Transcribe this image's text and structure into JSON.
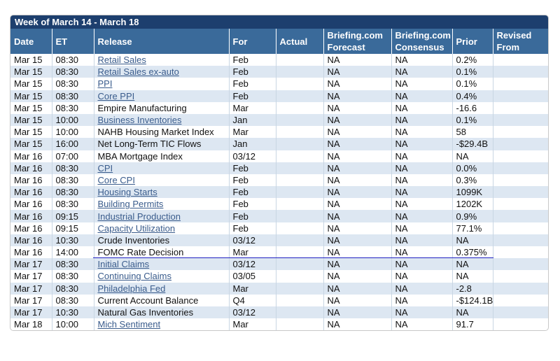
{
  "title": "Week of March 14 - March 18",
  "headers": [
    "Date",
    "ET",
    "Release",
    "For",
    "Actual",
    "Briefing.com Forecast",
    "Briefing.com Consensus",
    "Prior",
    "Revised From"
  ],
  "rows": [
    {
      "date": "Mar 15",
      "et": "08:30",
      "release": "Retail Sales",
      "link": true,
      "for": "Feb",
      "forecast": "NA",
      "consensus": "NA",
      "prior": "0.2%"
    },
    {
      "date": "Mar 15",
      "et": "08:30",
      "release": "Retail Sales ex-auto",
      "link": true,
      "for": "Feb",
      "forecast": "NA",
      "consensus": "NA",
      "prior": "0.1%"
    },
    {
      "date": "Mar 15",
      "et": "08:30",
      "release": "PPI",
      "link": true,
      "for": "Feb",
      "forecast": "NA",
      "consensus": "NA",
      "prior": "0.1%"
    },
    {
      "date": "Mar 15",
      "et": "08:30",
      "release": "Core PPI",
      "link": true,
      "for": "Feb",
      "forecast": "NA",
      "consensus": "NA",
      "prior": "0.4%"
    },
    {
      "date": "Mar 15",
      "et": "08:30",
      "release": "Empire Manufacturing",
      "link": false,
      "for": "Mar",
      "forecast": "NA",
      "consensus": "NA",
      "prior": "-16.6"
    },
    {
      "date": "Mar 15",
      "et": "10:00",
      "release": "Business Inventories",
      "link": true,
      "for": "Jan",
      "forecast": "NA",
      "consensus": "NA",
      "prior": "0.1%"
    },
    {
      "date": "Mar 15",
      "et": "10:00",
      "release": "NAHB Housing Market Index",
      "link": false,
      "for": "Mar",
      "forecast": "NA",
      "consensus": "NA",
      "prior": "58"
    },
    {
      "date": "Mar 15",
      "et": "16:00",
      "release": "Net Long-Term TIC Flows",
      "link": false,
      "for": "Jan",
      "forecast": "NA",
      "consensus": "NA",
      "prior": "-$29.4B"
    },
    {
      "date": "Mar 16",
      "et": "07:00",
      "release": "MBA Mortgage Index",
      "link": false,
      "for": "03/12",
      "forecast": "NA",
      "consensus": "NA",
      "prior": "NA"
    },
    {
      "date": "Mar 16",
      "et": "08:30",
      "release": "CPI",
      "link": true,
      "for": "Feb",
      "forecast": "NA",
      "consensus": "NA",
      "prior": "0.0%"
    },
    {
      "date": "Mar 16",
      "et": "08:30",
      "release": "Core CPI",
      "link": true,
      "for": "Feb",
      "forecast": "NA",
      "consensus": "NA",
      "prior": "0.3%"
    },
    {
      "date": "Mar 16",
      "et": "08:30",
      "release": "Housing Starts",
      "link": true,
      "for": "Feb",
      "forecast": "NA",
      "consensus": "NA",
      "prior": "1099K"
    },
    {
      "date": "Mar 16",
      "et": "08:30",
      "release": "Building Permits",
      "link": true,
      "for": "Feb",
      "forecast": "NA",
      "consensus": "NA",
      "prior": "1202K"
    },
    {
      "date": "Mar 16",
      "et": "09:15",
      "release": "Industrial Production",
      "link": true,
      "for": "Feb",
      "forecast": "NA",
      "consensus": "NA",
      "prior": "0.9%"
    },
    {
      "date": "Mar 16",
      "et": "09:15",
      "release": "Capacity Utilization",
      "link": true,
      "for": "Feb",
      "forecast": "NA",
      "consensus": "NA",
      "prior": "77.1%"
    },
    {
      "date": "Mar 16",
      "et": "10:30",
      "release": "Crude Inventories",
      "link": false,
      "for": "03/12",
      "forecast": "NA",
      "consensus": "NA",
      "prior": "NA"
    },
    {
      "date": "Mar 16",
      "et": "14:00",
      "release": "FOMC Rate Decision",
      "link": false,
      "for": "Mar",
      "forecast": "NA",
      "consensus": "NA",
      "prior": "0.375%"
    },
    {
      "date": "Mar 17",
      "et": "08:30",
      "release": "Initial Claims",
      "link": true,
      "for": "03/12",
      "forecast": "NA",
      "consensus": "NA",
      "prior": "NA"
    },
    {
      "date": "Mar 17",
      "et": "08:30",
      "release": "Continuing Claims",
      "link": true,
      "for": "03/05",
      "forecast": "NA",
      "consensus": "NA",
      "prior": "NA"
    },
    {
      "date": "Mar 17",
      "et": "08:30",
      "release": "Philadelphia Fed",
      "link": true,
      "for": "Mar",
      "forecast": "NA",
      "consensus": "NA",
      "prior": "-2.8"
    },
    {
      "date": "Mar 17",
      "et": "08:30",
      "release": "Current Account Balance",
      "link": false,
      "for": "Q4",
      "forecast": "NA",
      "consensus": "NA",
      "prior": "-$124.1B"
    },
    {
      "date": "Mar 17",
      "et": "10:30",
      "release": "Natural Gas Inventories",
      "link": false,
      "for": "03/12",
      "forecast": "NA",
      "consensus": "NA",
      "prior": "NA"
    },
    {
      "date": "Mar 18",
      "et": "10:00",
      "release": "Mich Sentiment",
      "link": true,
      "for": "Mar",
      "forecast": "NA",
      "consensus": "NA",
      "prior": "91.7"
    }
  ]
}
